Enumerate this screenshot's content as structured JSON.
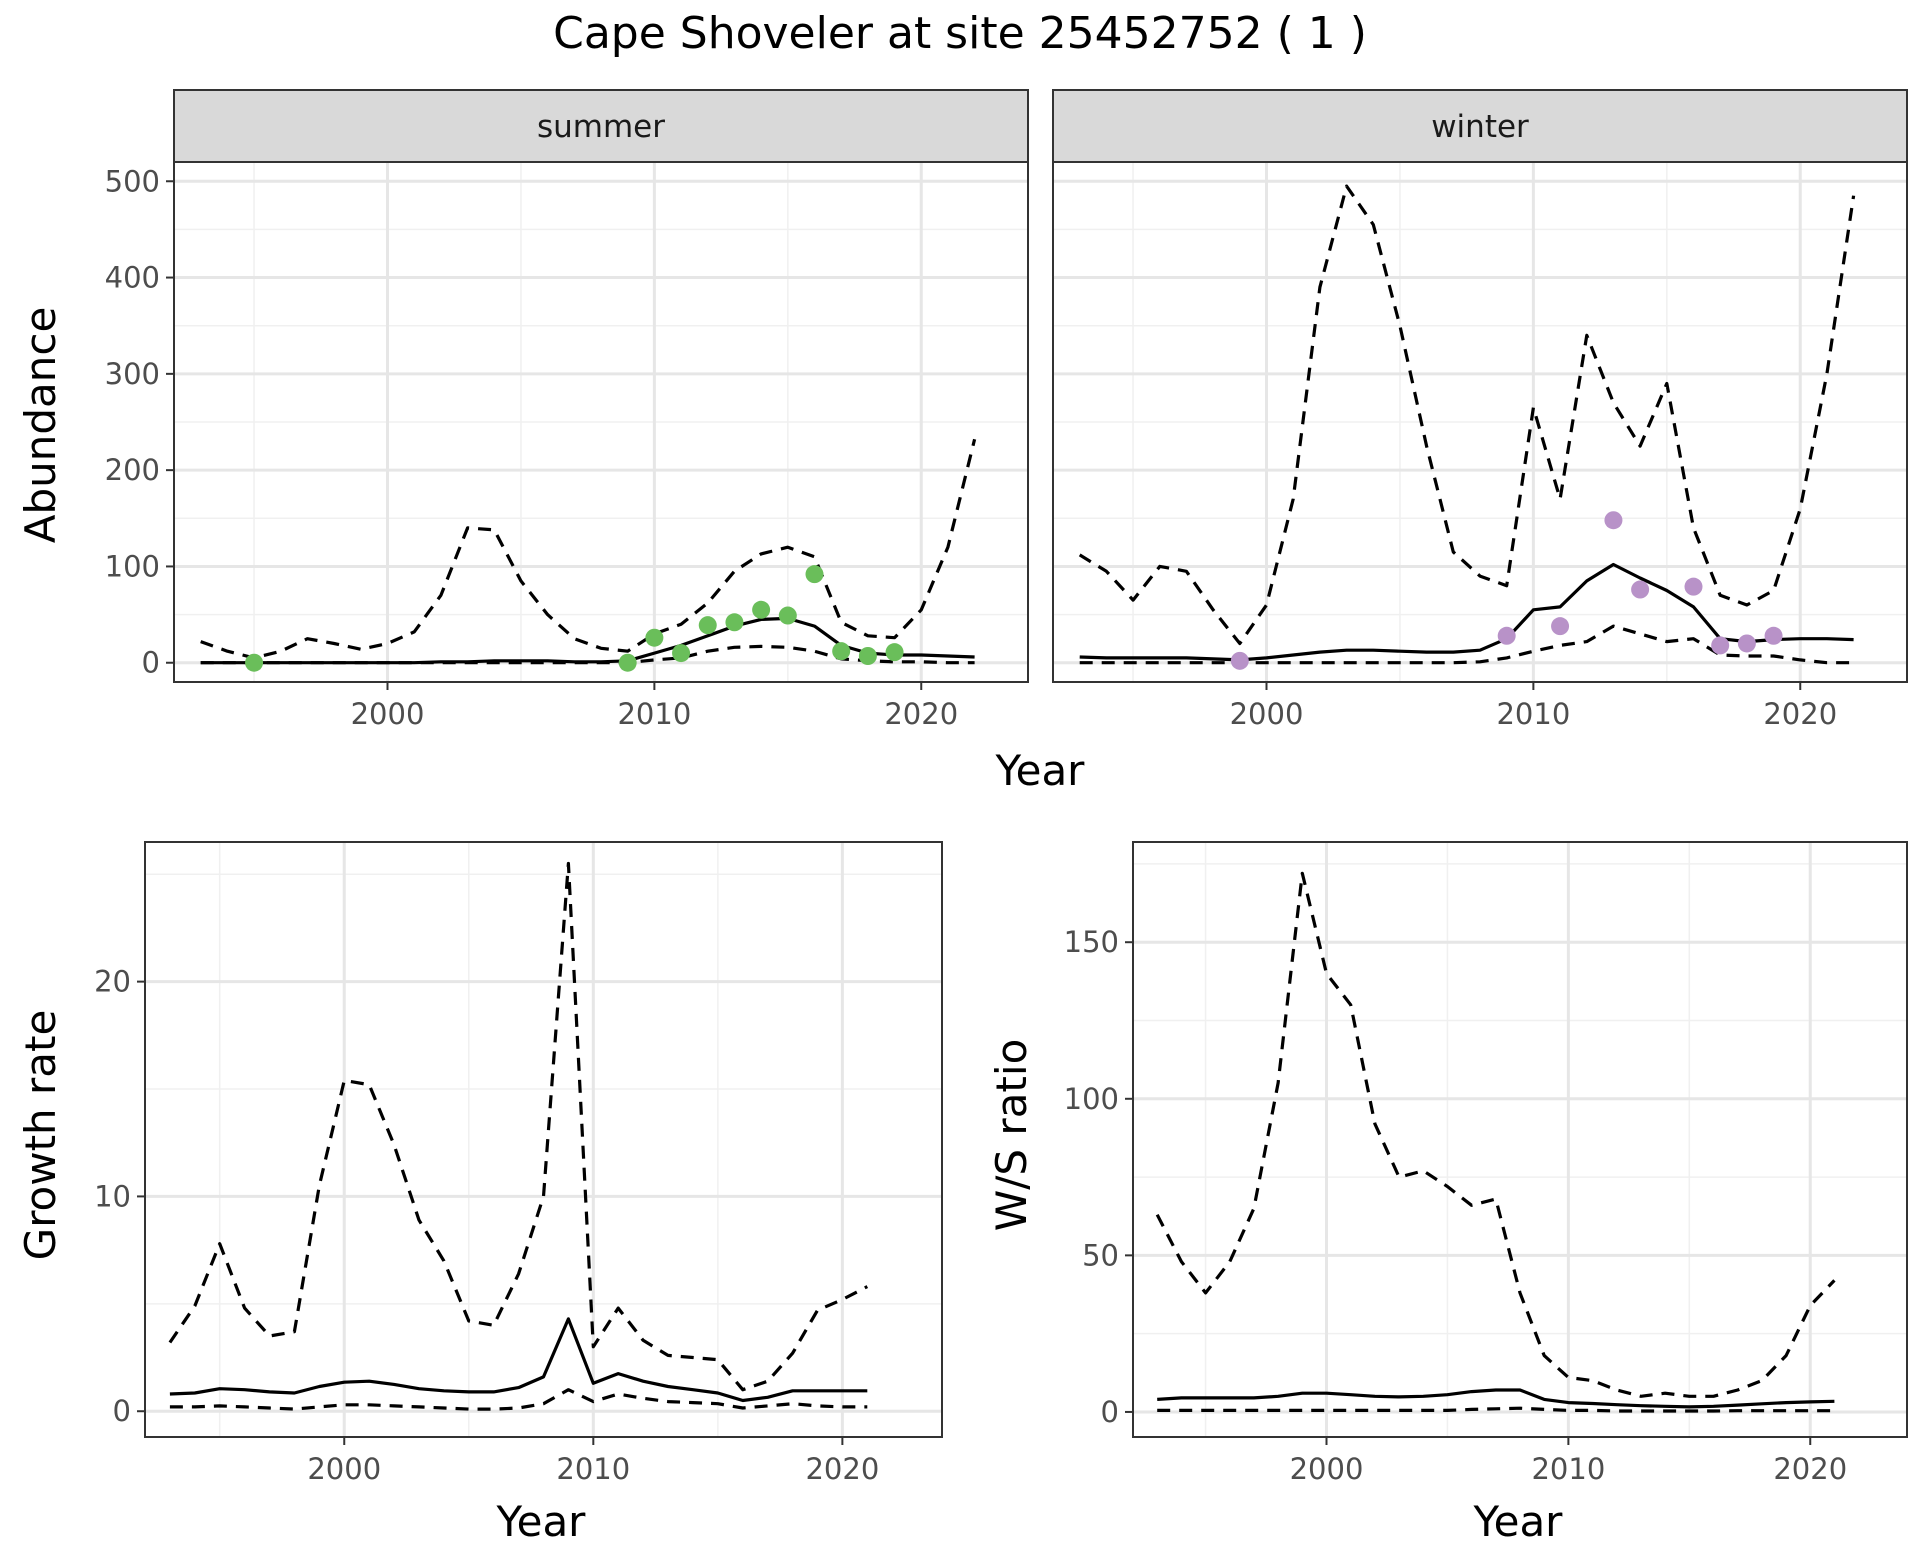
{
  "figure": {
    "title": "Cape Shoveler at site 25452752 ( 1 )"
  },
  "chart_data": [
    {
      "type": "line",
      "panel": "abundance",
      "ylabel": "Abundance",
      "xlabel": "Year",
      "grid": true,
      "xlim": [
        1992,
        2024
      ],
      "ylim": [
        -20,
        520
      ],
      "xticks": [
        2000,
        2010,
        2020
      ],
      "yticks": [
        0,
        100,
        200,
        300,
        400,
        500
      ],
      "facets": [
        {
          "label": "summer",
          "point_color": "#6abe5a",
          "series": [
            {
              "style": "solid",
              "x": [
                1993,
                1994,
                1995,
                1996,
                1997,
                1998,
                1999,
                2000,
                2001,
                2002,
                2003,
                2004,
                2005,
                2006,
                2007,
                2008,
                2009,
                2010,
                2011,
                2012,
                2013,
                2014,
                2015,
                2016,
                2017,
                2018,
                2019,
                2020,
                2021,
                2022
              ],
              "y": [
                0,
                0,
                0,
                0,
                0,
                0,
                0,
                0,
                0,
                1,
                1,
                2,
                2,
                2,
                1,
                1,
                2,
                10,
                18,
                28,
                38,
                45,
                46,
                38,
                18,
                10,
                8,
                8,
                7,
                6
              ]
            },
            {
              "style": "dashed",
              "x": [
                1993,
                1994,
                1995,
                1996,
                1997,
                1998,
                1999,
                2000,
                2001,
                2002,
                2003,
                2004,
                2005,
                2006,
                2007,
                2008,
                2009,
                2010,
                2011,
                2012,
                2013,
                2014,
                2015,
                2016,
                2017,
                2018,
                2019,
                2020,
                2021,
                2022
              ],
              "y": [
                22,
                12,
                5,
                12,
                25,
                20,
                14,
                20,
                32,
                70,
                140,
                138,
                85,
                50,
                25,
                15,
                12,
                30,
                40,
                62,
                95,
                113,
                120,
                110,
                42,
                28,
                26,
                55,
                120,
                232
              ]
            },
            {
              "style": "dashed",
              "x": [
                1993,
                1994,
                1995,
                1996,
                1997,
                1998,
                1999,
                2000,
                2001,
                2002,
                2003,
                2004,
                2005,
                2006,
                2007,
                2008,
                2009,
                2010,
                2011,
                2012,
                2013,
                2014,
                2015,
                2016,
                2017,
                2018,
                2019,
                2020,
                2021,
                2022
              ],
              "y": [
                0,
                0,
                0,
                0,
                0,
                0,
                0,
                0,
                0,
                0,
                0,
                0,
                0,
                0,
                0,
                0,
                0,
                3,
                5,
                12,
                16,
                17,
                16,
                12,
                4,
                2,
                1,
                1,
                0,
                0
              ]
            },
            {
              "style": "points",
              "x": [
                1995,
                2009,
                2010,
                2011,
                2012,
                2013,
                2014,
                2015,
                2016,
                2017,
                2018,
                2019
              ],
              "y": [
                0,
                0,
                26,
                10,
                39,
                42,
                55,
                49,
                92,
                12,
                7,
                11
              ]
            }
          ]
        },
        {
          "label": "winter",
          "point_color": "#b892c8",
          "series": [
            {
              "style": "solid",
              "x": [
                1993,
                1994,
                1995,
                1996,
                1997,
                1998,
                1999,
                2000,
                2001,
                2002,
                2003,
                2004,
                2005,
                2006,
                2007,
                2008,
                2009,
                2010,
                2011,
                2012,
                2013,
                2014,
                2015,
                2016,
                2017,
                2018,
                2019,
                2020,
                2021,
                2022
              ],
              "y": [
                6,
                5,
                5,
                5,
                5,
                4,
                3,
                5,
                8,
                11,
                13,
                13,
                12,
                11,
                11,
                13,
                25,
                55,
                58,
                85,
                102,
                88,
                75,
                58,
                25,
                22,
                24,
                25,
                25,
                24
              ]
            },
            {
              "style": "dashed",
              "x": [
                1993,
                1994,
                1995,
                1996,
                1997,
                1998,
                1999,
                2000,
                2001,
                2002,
                2003,
                2004,
                2005,
                2006,
                2007,
                2008,
                2009,
                2010,
                2011,
                2012,
                2013,
                2014,
                2015,
                2016,
                2017,
                2018,
                2019,
                2020,
                2021,
                2022
              ],
              "y": [
                112,
                95,
                65,
                100,
                95,
                55,
                20,
                60,
                170,
                390,
                495,
                455,
                350,
                225,
                115,
                90,
                80,
                265,
                170,
                340,
                270,
                225,
                290,
                140,
                70,
                60,
                75,
                160,
                300,
                485
              ]
            },
            {
              "style": "dashed",
              "x": [
                1993,
                1994,
                1995,
                1996,
                1997,
                1998,
                1999,
                2000,
                2001,
                2002,
                2003,
                2004,
                2005,
                2006,
                2007,
                2008,
                2009,
                2010,
                2011,
                2012,
                2013,
                2014,
                2015,
                2016,
                2017,
                2018,
                2019,
                2020,
                2021,
                2022
              ],
              "y": [
                0,
                0,
                0,
                0,
                0,
                0,
                0,
                0,
                0,
                0,
                0,
                0,
                0,
                0,
                0,
                1,
                5,
                12,
                18,
                22,
                38,
                30,
                22,
                25,
                8,
                7,
                7,
                3,
                0,
                0
              ]
            },
            {
              "style": "points",
              "x": [
                1999,
                2009,
                2011,
                2013,
                2014,
                2016,
                2017,
                2018,
                2019
              ],
              "y": [
                2,
                28,
                38,
                148,
                76,
                79,
                18,
                20,
                28
              ]
            }
          ]
        }
      ]
    },
    {
      "type": "line",
      "panel": "growth",
      "ylabel": "Growth rate",
      "xlabel": "Year",
      "grid": true,
      "xlim": [
        1992,
        2024
      ],
      "ylim": [
        -1.2,
        26.5
      ],
      "xticks": [
        2000,
        2010,
        2020
      ],
      "yticks": [
        0,
        10,
        20
      ],
      "series": [
        {
          "style": "solid",
          "x": [
            1993,
            1994,
            1995,
            1996,
            1997,
            1998,
            1999,
            2000,
            2001,
            2002,
            2003,
            2004,
            2005,
            2006,
            2007,
            2008,
            2009,
            2010,
            2011,
            2012,
            2013,
            2014,
            2015,
            2016,
            2017,
            2018,
            2019,
            2020,
            2021
          ],
          "y": [
            0.8,
            0.85,
            1.05,
            1.0,
            0.9,
            0.85,
            1.15,
            1.35,
            1.4,
            1.25,
            1.05,
            0.95,
            0.9,
            0.9,
            1.1,
            1.6,
            4.3,
            1.3,
            1.75,
            1.4,
            1.15,
            1.0,
            0.85,
            0.5,
            0.65,
            0.95,
            0.95,
            0.95,
            0.95
          ]
        },
        {
          "style": "dashed",
          "x": [
            1993,
            1994,
            1995,
            1996,
            1997,
            1998,
            1999,
            2000,
            2001,
            2002,
            2003,
            2004,
            2005,
            2006,
            2007,
            2008,
            2009,
            2010,
            2011,
            2012,
            2013,
            2014,
            2015,
            2016,
            2017,
            2018,
            2019,
            2020,
            2021
          ],
          "y": [
            3.2,
            4.9,
            7.8,
            4.8,
            3.5,
            3.7,
            10.5,
            15.4,
            15.2,
            12.4,
            8.9,
            7.0,
            4.2,
            4.0,
            6.4,
            10.0,
            25.5,
            3.0,
            4.8,
            3.3,
            2.6,
            2.5,
            2.4,
            1.0,
            1.4,
            2.7,
            4.7,
            5.2,
            5.8
          ]
        },
        {
          "style": "dashed",
          "x": [
            1993,
            1994,
            1995,
            1996,
            1997,
            1998,
            1999,
            2000,
            2001,
            2002,
            2003,
            2004,
            2005,
            2006,
            2007,
            2008,
            2009,
            2010,
            2011,
            2012,
            2013,
            2014,
            2015,
            2016,
            2017,
            2018,
            2019,
            2020,
            2021
          ],
          "y": [
            0.2,
            0.2,
            0.25,
            0.2,
            0.15,
            0.1,
            0.2,
            0.3,
            0.3,
            0.25,
            0.2,
            0.15,
            0.1,
            0.1,
            0.15,
            0.35,
            1.0,
            0.45,
            0.8,
            0.6,
            0.45,
            0.4,
            0.35,
            0.15,
            0.25,
            0.35,
            0.25,
            0.2,
            0.2
          ]
        }
      ]
    },
    {
      "type": "line",
      "panel": "ratio",
      "ylabel": "W/S ratio",
      "xlabel": "Year",
      "grid": true,
      "xlim": [
        1992,
        2024
      ],
      "ylim": [
        -8,
        182
      ],
      "xticks": [
        2000,
        2010,
        2020
      ],
      "yticks": [
        0,
        50,
        100,
        150
      ],
      "series": [
        {
          "style": "solid",
          "x": [
            1993,
            1994,
            1995,
            1996,
            1997,
            1998,
            1999,
            2000,
            2001,
            2002,
            2003,
            2004,
            2005,
            2006,
            2007,
            2008,
            2009,
            2010,
            2011,
            2012,
            2013,
            2014,
            2015,
            2016,
            2017,
            2018,
            2019,
            2020,
            2021
          ],
          "y": [
            4,
            4.5,
            4.5,
            4.5,
            4.5,
            5,
            6,
            6,
            5.5,
            5,
            4.8,
            5,
            5.5,
            6.5,
            7,
            7,
            4,
            3,
            2.7,
            2.3,
            2,
            1.8,
            1.6,
            1.8,
            2.2,
            2.6,
            3,
            3.2,
            3.4
          ]
        },
        {
          "style": "dashed",
          "x": [
            1993,
            1994,
            1995,
            1996,
            1997,
            1998,
            1999,
            2000,
            2001,
            2002,
            2003,
            2004,
            2005,
            2006,
            2007,
            2008,
            2009,
            2010,
            2011,
            2012,
            2013,
            2014,
            2015,
            2016,
            2017,
            2018,
            2019,
            2020,
            2021
          ],
          "y": [
            63,
            48,
            38,
            48,
            65,
            105,
            172,
            140,
            130,
            92,
            75,
            77,
            72,
            66,
            68,
            38,
            18,
            11,
            10,
            7,
            5,
            6,
            5,
            5,
            7,
            10,
            18,
            34,
            42
          ]
        },
        {
          "style": "dashed",
          "x": [
            1993,
            1994,
            1995,
            1996,
            1997,
            1998,
            1999,
            2000,
            2001,
            2002,
            2003,
            2004,
            2005,
            2006,
            2007,
            2008,
            2009,
            2010,
            2011,
            2012,
            2013,
            2014,
            2015,
            2016,
            2017,
            2018,
            2019,
            2020,
            2021
          ],
          "y": [
            0.5,
            0.5,
            0.5,
            0.5,
            0.5,
            0.5,
            0.5,
            0.5,
            0.5,
            0.5,
            0.5,
            0.5,
            0.5,
            0.8,
            1,
            1.2,
            0.8,
            0.5,
            0.5,
            0.3,
            0.3,
            0.3,
            0.3,
            0.3,
            0.4,
            0.4,
            0.4,
            0.4,
            0.4
          ]
        }
      ]
    }
  ]
}
